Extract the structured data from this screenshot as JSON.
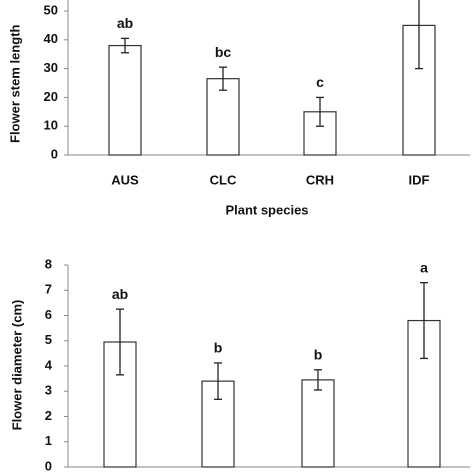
{
  "chart_data": [
    {
      "type": "bar",
      "ylabel": "Flower stem length",
      "xlabel": "Plant species",
      "categories": [
        "AUS",
        "CLC",
        "CRH",
        "IDF"
      ],
      "values": [
        38,
        26.5,
        15,
        45
      ],
      "errors": [
        2.5,
        4,
        5,
        15
      ],
      "letters": [
        "ab",
        "bc",
        "c",
        null
      ],
      "color": "#ffffff",
      "edgecolor": "#333333",
      "ylim": [
        0,
        60
      ],
      "yticks": [
        0,
        10,
        20,
        30,
        40,
        50
      ]
    },
    {
      "type": "bar",
      "ylabel": "Flower diameter (cm)",
      "values": [
        4.95,
        3.4,
        3.45,
        5.8
      ],
      "errors": [
        1.3,
        0.72,
        0.4,
        1.5
      ],
      "letters": [
        "ab",
        "b",
        "b",
        "a"
      ],
      "color": "#ffffff",
      "edgecolor": "#333333",
      "ylim": [
        0,
        8
      ],
      "yticks": [
        0,
        1,
        2,
        3,
        4,
        5,
        6,
        7,
        8
      ]
    }
  ]
}
